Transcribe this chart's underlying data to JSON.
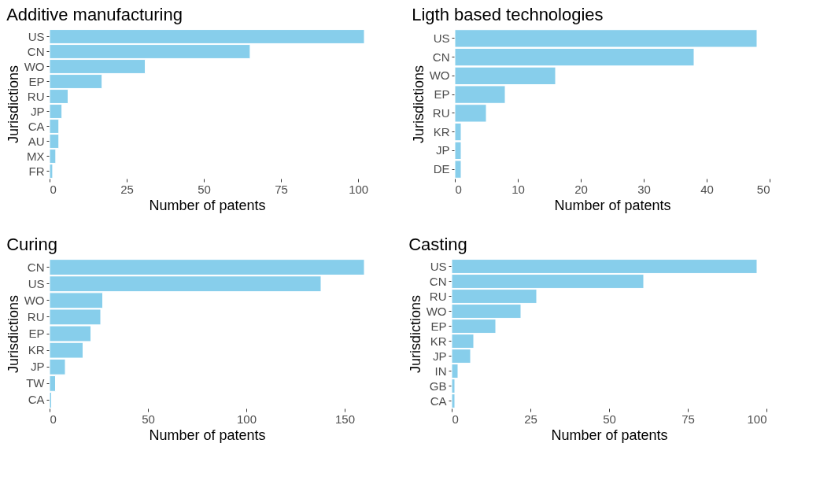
{
  "chart_data": [
    {
      "type": "bar",
      "orientation": "horizontal",
      "title": "Additive manufacturing",
      "xlabel": "Number of patents",
      "ylabel": "Jurisdictions",
      "categories": [
        "US",
        "CN",
        "WO",
        "EP",
        "RU",
        "JP",
        "CA",
        "AU",
        "MX",
        "FR"
      ],
      "values": [
        102,
        65,
        31,
        17,
        6,
        4,
        3,
        3,
        2,
        1
      ],
      "color": "#87ceeb",
      "xlim": [
        0,
        102
      ],
      "xticks": [
        0,
        25,
        50,
        75,
        100
      ],
      "grid": false
    },
    {
      "type": "bar",
      "orientation": "horizontal",
      "title": "Ligth based technologies",
      "xlabel": "Number of patents",
      "ylabel": "Jurisdictions",
      "categories": [
        "US",
        "CN",
        "WO",
        "EP",
        "RU",
        "KR",
        "JP",
        "DE"
      ],
      "values": [
        48,
        38,
        16,
        8,
        5,
        1,
        1,
        1
      ],
      "color": "#87ceeb",
      "xlim": [
        0,
        50
      ],
      "xticks": [
        0,
        10,
        20,
        30,
        40,
        50
      ],
      "grid": false
    },
    {
      "type": "bar",
      "orientation": "horizontal",
      "title": "Curing",
      "xlabel": "Number of patents",
      "ylabel": "Jurisdictions",
      "categories": [
        "CN",
        "US",
        "WO",
        "RU",
        "EP",
        "KR",
        "JP",
        "TW",
        "CA"
      ],
      "values": [
        160,
        138,
        27,
        26,
        21,
        17,
        8,
        3,
        1
      ],
      "color": "#87ceeb",
      "xlim": [
        0,
        160
      ],
      "xticks": [
        0,
        50,
        100,
        150
      ],
      "grid": false
    },
    {
      "type": "bar",
      "orientation": "horizontal",
      "title": "Casting",
      "xlabel": "Number of patents",
      "ylabel": "Jurisdictions",
      "categories": [
        "US",
        "CN",
        "RU",
        "WO",
        "EP",
        "KR",
        "JP",
        "IN",
        "GB",
        "CA"
      ],
      "values": [
        97,
        61,
        27,
        22,
        14,
        7,
        6,
        2,
        1,
        1
      ],
      "color": "#87ceeb",
      "xlim": [
        0,
        100
      ],
      "xticks": [
        0,
        25,
        50,
        75,
        100
      ],
      "grid": false
    }
  ]
}
